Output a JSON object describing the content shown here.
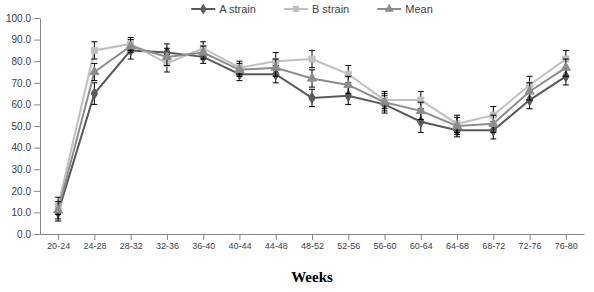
{
  "chart_data": {
    "type": "line",
    "categories": [
      "20-24",
      "24-28",
      "28-32",
      "32-36",
      "36-40",
      "40-44",
      "44-48",
      "48-52",
      "52-56",
      "56-60",
      "60-64",
      "64-68",
      "68-72",
      "72-76",
      "76-80"
    ],
    "series": [
      {
        "name": "A strain",
        "color": "#595959",
        "marker": "diamond",
        "values": [
          10,
          65,
          85,
          84,
          82,
          74,
          74,
          63,
          64,
          60,
          52,
          48,
          48,
          62,
          73
        ],
        "errors": [
          4,
          5,
          4,
          4,
          3,
          3,
          4,
          4,
          4,
          4,
          5,
          3,
          4,
          4,
          4
        ]
      },
      {
        "name": "B strain",
        "color": "#bfbfbf",
        "marker": "square",
        "values": [
          13,
          85,
          88,
          79,
          86,
          77,
          80,
          81,
          74,
          62,
          62,
          51,
          55,
          69,
          81
        ],
        "errors": [
          4,
          4,
          3,
          4,
          3,
          3,
          4,
          4,
          4,
          4,
          4,
          4,
          4,
          4,
          4
        ]
      },
      {
        "name": "Mean",
        "color": "#8c8c8c",
        "marker": "triangle",
        "values": [
          11,
          75,
          87,
          82,
          84,
          76,
          77,
          72,
          69,
          61,
          57,
          50,
          51,
          66,
          77
        ],
        "errors": [
          4,
          4,
          3,
          4,
          3,
          3,
          4,
          4,
          4,
          4,
          4,
          4,
          4,
          4,
          4
        ]
      }
    ],
    "ylim": [
      0,
      100
    ],
    "yticks": [
      {
        "value": 0,
        "label": "0.0"
      },
      {
        "value": 10,
        "label": "10.0"
      },
      {
        "value": 20,
        "label": "20.0"
      },
      {
        "value": 30,
        "label": "30.0"
      },
      {
        "value": 40,
        "label": "40.0"
      },
      {
        "value": 50,
        "label": "50.0"
      },
      {
        "value": 60,
        "label": "60.0"
      },
      {
        "value": 70,
        "label": "70.0"
      },
      {
        "value": 80,
        "label": "80.0"
      },
      {
        "value": 90,
        "label": "90.0"
      },
      {
        "value": 100,
        "label": "100.0"
      }
    ],
    "x_label": "Weeks",
    "grid": false,
    "legend": "top"
  }
}
